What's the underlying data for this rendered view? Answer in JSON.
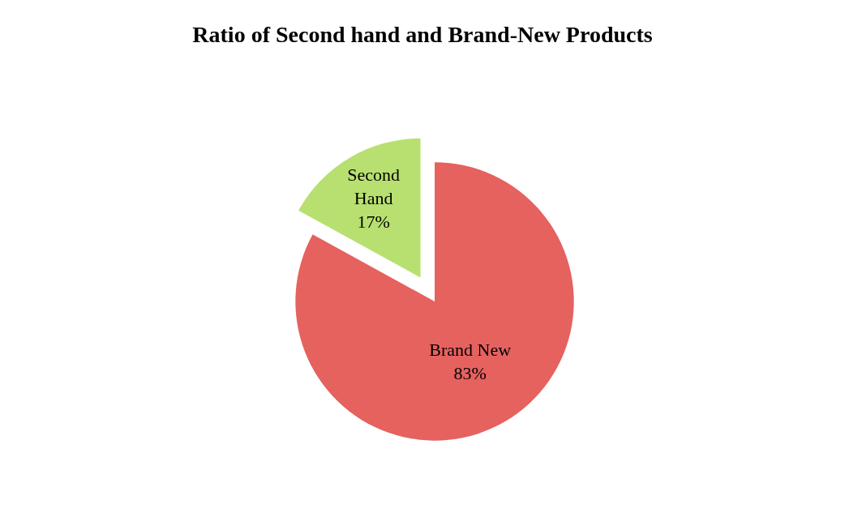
{
  "chart_data": {
    "type": "pie",
    "title": "Ratio of Second hand and Brand-New Products",
    "categories": [
      "Brand New",
      "Second Hand"
    ],
    "values": [
      83,
      17
    ],
    "value_labels": [
      "83%",
      "17%"
    ],
    "colors": [
      "#e5625f",
      "#b8e070"
    ],
    "legend": false
  }
}
